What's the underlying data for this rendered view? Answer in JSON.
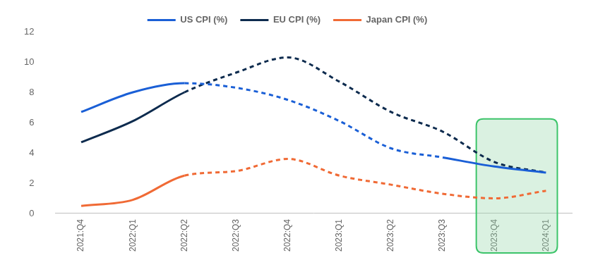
{
  "chart_data": {
    "type": "line",
    "categories": [
      "2021:Q4",
      "2022:Q1",
      "2022:Q2",
      "2022:Q3",
      "2022:Q4",
      "2023:Q1",
      "2023:Q2",
      "2023:Q3",
      "2023:Q4",
      "2024:Q1"
    ],
    "series": [
      {
        "name": "US CPI (%)",
        "color": "#1a5fd6",
        "values": [
          6.7,
          8.0,
          8.6,
          8.3,
          7.5,
          6.1,
          4.3,
          3.7,
          3.1,
          2.7
        ],
        "line_style": [
          "solid",
          "solid",
          "dashed",
          "dashed",
          "dashed",
          "dashed",
          "dashed",
          "solid",
          "solid"
        ]
      },
      {
        "name": "EU CPI (%)",
        "color": "#0d2b4e",
        "values": [
          4.7,
          6.1,
          8.0,
          9.3,
          10.3,
          8.7,
          6.7,
          5.4,
          3.4,
          2.7
        ],
        "line_style": [
          "solid",
          "solid",
          "dashed",
          "dashed",
          "dashed",
          "dashed",
          "dashed",
          "dashed",
          "dashed"
        ]
      },
      {
        "name": "Japan CPI (%)",
        "color": "#f06a35",
        "values": [
          0.5,
          0.9,
          2.5,
          2.8,
          3.6,
          2.5,
          1.9,
          1.3,
          1.0,
          1.5
        ],
        "line_style": [
          "solid",
          "solid",
          "dashed",
          "dashed",
          "dashed",
          "dashed",
          "dashed",
          "dashed",
          "dashed"
        ]
      }
    ],
    "ylim": [
      0,
      12
    ],
    "yticks": [
      0,
      2,
      4,
      6,
      8,
      10,
      12
    ],
    "grid": false,
    "legend": "top"
  }
}
